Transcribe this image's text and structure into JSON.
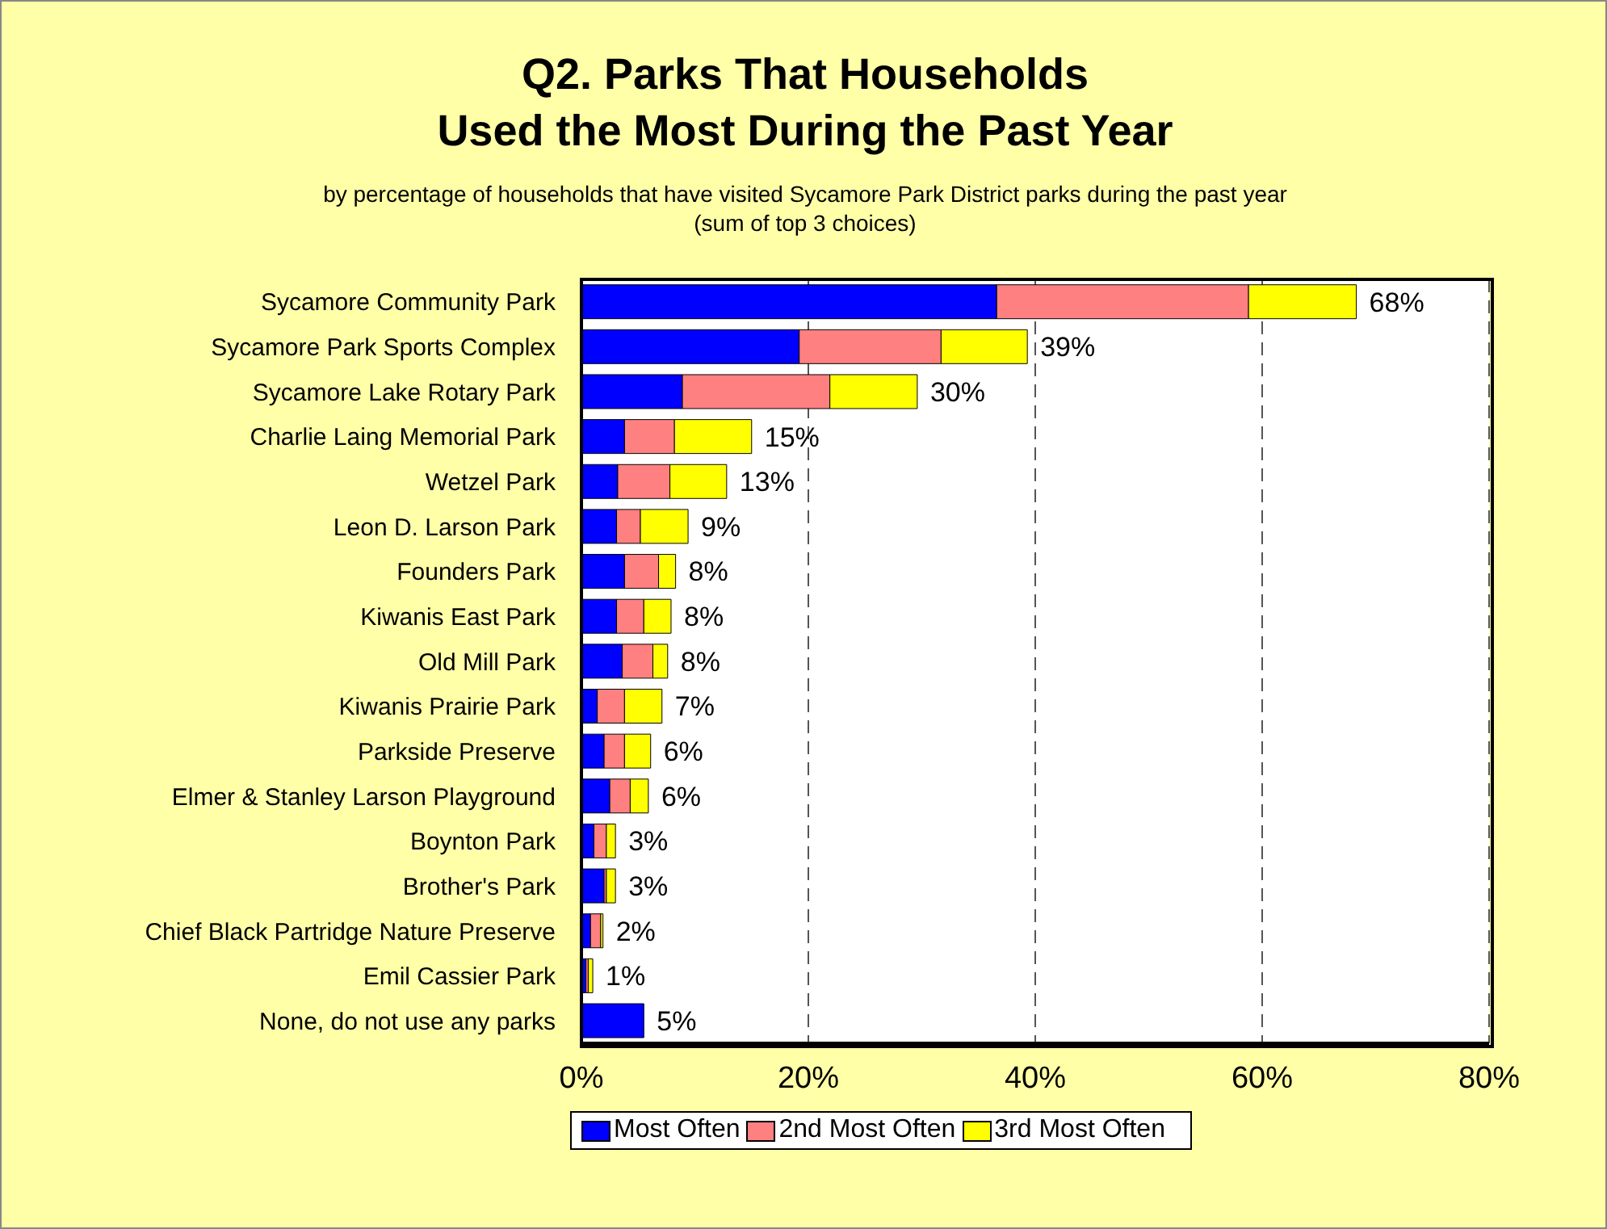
{
  "chart_data": {
    "type": "bar",
    "orientation": "horizontal",
    "stacked": true,
    "title": "Q2. Parks That Households\nUsed the Most During the Past Year",
    "subtitle": "by percentage of households that have visited Sycamore Park District parks during the past year\n(sum of top 3 choices)",
    "categories": [
      "Sycamore Community Park",
      "Sycamore Park Sports Complex",
      "Sycamore Lake Rotary Park",
      "Charlie Laing Memorial Park",
      "Wetzel Park",
      "Leon D. Larson Park",
      "Founders Park",
      "Kiwanis East Park",
      "Old Mill Park",
      "Kiwanis Prairie Park",
      "Parkside Preserve",
      "Elmer & Stanley Larson Playground",
      "Boynton Park",
      "Brother's Park",
      "Chief Black Partridge Nature Preserve",
      "Emil Cassier Park",
      "None, do not use any parks"
    ],
    "series": [
      {
        "name": "Most Often",
        "color": "#0000ff",
        "values": [
          36.6,
          19.2,
          8.9,
          3.8,
          3.2,
          3.1,
          3.8,
          3.1,
          3.6,
          1.4,
          2.0,
          2.5,
          1.1,
          2.0,
          0.8,
          0.4,
          5.5
        ]
      },
      {
        "name": "2nd Most Often",
        "color": "#ff8080",
        "values": [
          22.2,
          12.5,
          13.0,
          4.4,
          4.6,
          2.1,
          3.0,
          2.4,
          2.7,
          2.4,
          1.8,
          1.8,
          1.1,
          0.2,
          0.9,
          0.2,
          null
        ]
      },
      {
        "name": "3rd Most Often",
        "color": "#ffff00",
        "values": [
          9.5,
          7.6,
          7.7,
          6.8,
          5.0,
          4.2,
          1.5,
          2.4,
          1.3,
          3.3,
          2.3,
          1.6,
          0.8,
          0.8,
          0.2,
          0.4,
          null
        ]
      }
    ],
    "totals": [
      "68%",
      "39%",
      "30%",
      "15%",
      "13%",
      "9%",
      "8%",
      "8%",
      "8%",
      "7%",
      "6%",
      "6%",
      "3%",
      "3%",
      "2%",
      "1%",
      "5%"
    ],
    "xlim": [
      0,
      80
    ],
    "xticks": [
      {
        "value": 0,
        "label": "0%"
      },
      {
        "value": 20,
        "label": "20%"
      },
      {
        "value": 40,
        "label": "40%"
      },
      {
        "value": 60,
        "label": "60%"
      },
      {
        "value": 80,
        "label": "80%"
      }
    ],
    "grid": "x",
    "legend": "bottom"
  }
}
